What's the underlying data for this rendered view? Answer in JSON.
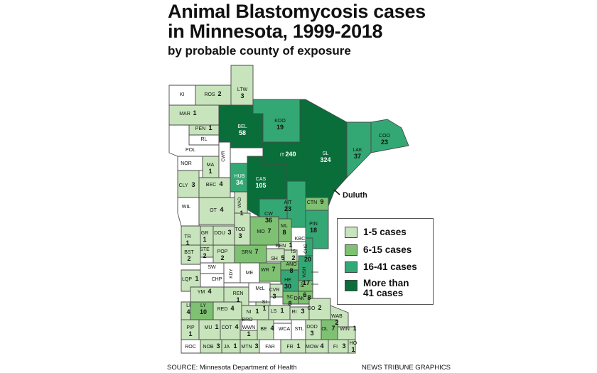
{
  "title_line1": "Animal Blastomycosis cases",
  "title_line2": "in Minnesota, 1999-2018",
  "subtitle": "by probable county of exposure",
  "source": "SOURCE: Minnesota Department of Health",
  "credit": "NEWS TRIBUNE GRAPHICS",
  "city_label": "Duluth",
  "colors": {
    "none": "#ffffff",
    "c1_5": "#c8e4bc",
    "c6_15": "#7fc172",
    "c16_41": "#33a874",
    "c42": "#0a6e3b",
    "border": "#4a4a4a"
  },
  "legend": [
    {
      "label": "1-5 cases",
      "color": "#c8e4bc"
    },
    {
      "label": "6-15 cases",
      "color": "#7fc172"
    },
    {
      "label": "16-41 cases",
      "color": "#33a874"
    },
    {
      "label": "More than",
      "label2": "41 cases",
      "color": "#0a6e3b"
    }
  ],
  "counties": [
    {
      "abbr": "KI",
      "value": ""
    },
    {
      "abbr": "ROS",
      "value": "2"
    },
    {
      "abbr": "LTW",
      "value": "3"
    },
    {
      "abbr": "MAR",
      "value": "1"
    },
    {
      "abbr": "PEN",
      "value": "1"
    },
    {
      "abbr": "RL",
      "value": ""
    },
    {
      "abbr": "POL",
      "value": ""
    },
    {
      "abbr": "BEL",
      "value": "58"
    },
    {
      "abbr": "KOO",
      "value": "19"
    },
    {
      "abbr": "IT",
      "value": "240"
    },
    {
      "abbr": "SL",
      "value": "324"
    },
    {
      "abbr": "LAK",
      "value": "37"
    },
    {
      "abbr": "COO",
      "value": "23"
    },
    {
      "abbr": "NOR",
      "value": ""
    },
    {
      "abbr": "MA",
      "value": "1"
    },
    {
      "abbr": "CWR",
      "value": ""
    },
    {
      "abbr": "HUB",
      "value": "34"
    },
    {
      "abbr": "CAS",
      "value": "105"
    },
    {
      "abbr": "CLY",
      "value": "3"
    },
    {
      "abbr": "BEC",
      "value": "4"
    },
    {
      "abbr": "AIT",
      "value": "23"
    },
    {
      "abbr": "CW",
      "value": "36"
    },
    {
      "abbr": "CTN",
      "value": "9"
    },
    {
      "abbr": "WIL",
      "value": ""
    },
    {
      "abbr": "OT",
      "value": "4"
    },
    {
      "abbr": "WAD",
      "value": "1"
    },
    {
      "abbr": "PIN",
      "value": "18"
    },
    {
      "abbr": "TOD",
      "value": "3"
    },
    {
      "abbr": "ML",
      "value": "8"
    },
    {
      "abbr": "MO",
      "value": "7"
    },
    {
      "abbr": "KBC",
      "value": ""
    },
    {
      "abbr": "TR",
      "value": "1"
    },
    {
      "abbr": "GR",
      "value": "1"
    },
    {
      "abbr": "DOU",
      "value": "3"
    },
    {
      "abbr": "BEN",
      "value": "1"
    },
    {
      "abbr": "CHS",
      "value": "20"
    },
    {
      "abbr": "STE",
      "value": "2"
    },
    {
      "abbr": "POP",
      "value": "2"
    },
    {
      "abbr": "SRN",
      "value": "7"
    },
    {
      "abbr": "SH",
      "value": "5"
    },
    {
      "abbr": "IS",
      "value": "2"
    },
    {
      "abbr": "BST",
      "value": "2"
    },
    {
      "abbr": "SW",
      "value": ""
    },
    {
      "abbr": "KDY",
      "value": ""
    },
    {
      "abbr": "ME",
      "value": ""
    },
    {
      "abbr": "WR",
      "value": "7"
    },
    {
      "abbr": "ANO",
      "value": "8"
    },
    {
      "abbr": "WSH",
      "value": "17"
    },
    {
      "abbr": "CHP",
      "value": ""
    },
    {
      "abbr": "LQP",
      "value": "1"
    },
    {
      "abbr": "HE",
      "value": "30"
    },
    {
      "abbr": "RA",
      "value": "6"
    },
    {
      "abbr": "YM",
      "value": "4"
    },
    {
      "abbr": "REN",
      "value": "1"
    },
    {
      "abbr": "McL",
      "value": ""
    },
    {
      "abbr": "CVR",
      "value": "3"
    },
    {
      "abbr": "SC",
      "value": "8"
    },
    {
      "abbr": "DAK",
      "value": "8"
    },
    {
      "abbr": "LI",
      "value": "4"
    },
    {
      "abbr": "LY",
      "value": "10"
    },
    {
      "abbr": "RED",
      "value": "4"
    },
    {
      "abbr": "SI",
      "value": "1"
    },
    {
      "abbr": "NI",
      "value": "1"
    },
    {
      "abbr": "LS",
      "value": "1"
    },
    {
      "abbr": "RI",
      "value": "3"
    },
    {
      "abbr": "GO",
      "value": "2"
    },
    {
      "abbr": "WAB",
      "value": "2"
    },
    {
      "abbr": "BRO",
      "value": ""
    },
    {
      "abbr": "PIP",
      "value": "1"
    },
    {
      "abbr": "MU",
      "value": "1"
    },
    {
      "abbr": "COT",
      "value": "4"
    },
    {
      "abbr": "WWN",
      "value": "1"
    },
    {
      "abbr": "BE",
      "value": "4"
    },
    {
      "abbr": "WCA",
      "value": ""
    },
    {
      "abbr": "STL",
      "value": ""
    },
    {
      "abbr": "DOD",
      "value": "3"
    },
    {
      "abbr": "OL",
      "value": "7"
    },
    {
      "abbr": "WIN",
      "value": "1"
    },
    {
      "abbr": "ROC",
      "value": ""
    },
    {
      "abbr": "NOB",
      "value": "3"
    },
    {
      "abbr": "JA",
      "value": "1"
    },
    {
      "abbr": "MTN",
      "value": "3"
    },
    {
      "abbr": "FAR",
      "value": ""
    },
    {
      "abbr": "FR",
      "value": "1"
    },
    {
      "abbr": "MOW",
      "value": "4"
    },
    {
      "abbr": "FI",
      "value": "3"
    },
    {
      "abbr": "HO",
      "value": "1"
    }
  ]
}
